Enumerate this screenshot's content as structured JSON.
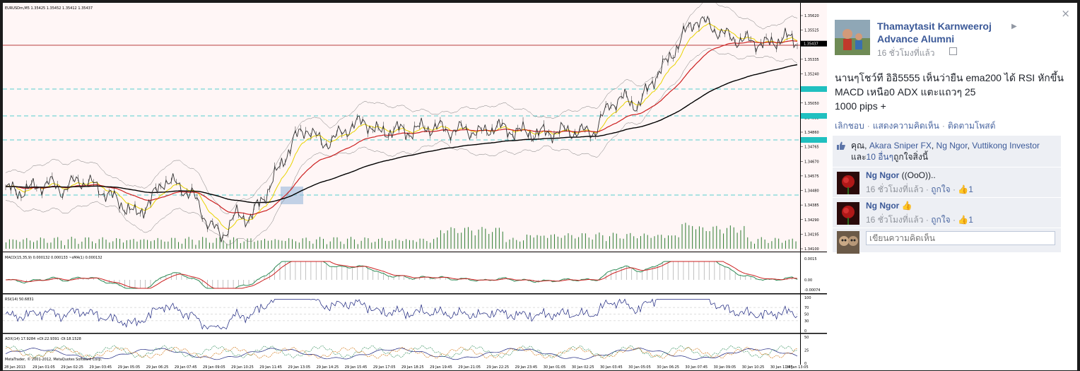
{
  "chart": {
    "symbol_header": "EURUSDm,M5  1.35425 1.35452 1.35412 1.35437",
    "price_ticks": [
      "1.35620",
      "1.35525",
      "1.35437",
      "1.35335",
      "1.35240",
      "1.35145",
      "1.35050",
      "1.34955",
      "1.34860",
      "1.34765",
      "1.34670",
      "1.34575",
      "1.34480",
      "1.34385",
      "1.34290",
      "1.34195",
      "1.34100"
    ],
    "current_price": "1.35437",
    "macd_header": "MACD(15,35,9) 0.000132 0.000133  ~sMA(1) 0.000132",
    "macd_ticks": [
      "0.0015",
      "0.00",
      "-0.00074"
    ],
    "rsi_header": "RSI(14) 50.6831",
    "rsi_ticks": [
      "100",
      "70",
      "50",
      "30",
      "0"
    ],
    "adx_header": "ADX(14) 17.9284 +DI:22.9391 -DI:18.1528",
    "adx_ticks": [
      "50",
      "25",
      "0"
    ],
    "copyright": "MetaTrader, © 2001-2012, MetaQuotes Software Corp.",
    "time_labels": [
      "28 Jan 2013",
      "29 Jan 01:05",
      "29 Jan 02:25",
      "29 Jan 03:45",
      "29 Jan 05:05",
      "29 Jan 06:25",
      "29 Jan 07:45",
      "29 Jan 09:05",
      "29 Jan 10:25",
      "29 Jan 11:45",
      "29 Jan 13:05",
      "29 Jan 14:25",
      "29 Jan 15:45",
      "29 Jan 17:05",
      "29 Jan 18:25",
      "29 Jan 19:45",
      "29 Jan 21:05",
      "29 Jan 22:25",
      "29 Jan 23:45",
      "30 Jan 01:05",
      "30 Jan 02:25",
      "30 Jan 03:45",
      "30 Jan 05:05",
      "30 Jan 06:25",
      "30 Jan 07:45",
      "30 Jan 09:05",
      "30 Jan 10:25",
      "30 Jan 11:45",
      "30 Jan 13:05"
    ],
    "colors": {
      "price": "#333333",
      "ema_fast": "#e8d400",
      "ema_mid": "#cc2020",
      "ema200": "#000000",
      "macd_main": "#2e8b57",
      "macd_signal": "#cc2020",
      "rsi": "#1a237e",
      "hline": "#a00000",
      "cyan": "#20c0c0"
    },
    "close_prices": [
      1.3449,
      1.3447,
      1.345,
      1.3453,
      1.3448,
      1.3455,
      1.3452,
      1.3446,
      1.344,
      1.3432,
      1.344,
      1.3455,
      1.3451,
      1.3445,
      1.3428,
      1.3418,
      1.3432,
      1.343,
      1.3445,
      1.3462,
      1.3481,
      1.3489,
      1.3478,
      1.3483,
      1.349,
      1.3493,
      1.3485,
      1.3488,
      1.3486,
      1.3489,
      1.3489,
      1.3487,
      1.3488,
      1.3485,
      1.349,
      1.3487,
      1.3486,
      1.3485,
      1.3486,
      1.3487,
      1.3486,
      1.3487,
      1.3505,
      1.3508,
      1.3503,
      1.3521,
      1.3532,
      1.3548,
      1.356,
      1.3555,
      1.3549,
      1.3546,
      1.3545,
      1.3543,
      1.3548,
      1.3545
    ]
  },
  "post": {
    "author_line1": "Thamaytasit Karnweeroj",
    "author_line2": "Advance Alumni",
    "time": "16 ชั่วโมงที่แล้ว",
    "message": "นานๆโชว์ที อิอิ5555 เห็นว่ายืน ema200 ได้ RSI หักขึ้น MACD เหนือ0 ADX แตะแถวๆ 25\n1000 pips +",
    "actions": [
      "เลิกชอบ",
      "แสดงความคิดเห็น",
      "ติดตามโพสต์"
    ],
    "likes_prefix": "คุณ, ",
    "likers": [
      "Akara Sniper FX",
      "Ng Ngor",
      "Vuttikong Investor"
    ],
    "likes_suffix_pre": "และ",
    "likes_others": "10 อื่นๆ",
    "likes_suffix_post": "ถูกใจสิ่งนี้",
    "comments": [
      {
        "name": "Ng Ngor",
        "text": "((OoO))..",
        "time": "16 ชั่วโมงที่แล้ว",
        "like_label": "ถูกใจ",
        "like_count": "1"
      },
      {
        "name": "Ng Ngor",
        "text": "",
        "time": "16 ชั่วโมงที่แล้ว",
        "like_label": "ถูกใจ",
        "like_count": "1"
      }
    ],
    "comment_placeholder": "เขียนความคิดเห็น",
    "close_glyph": "×"
  }
}
